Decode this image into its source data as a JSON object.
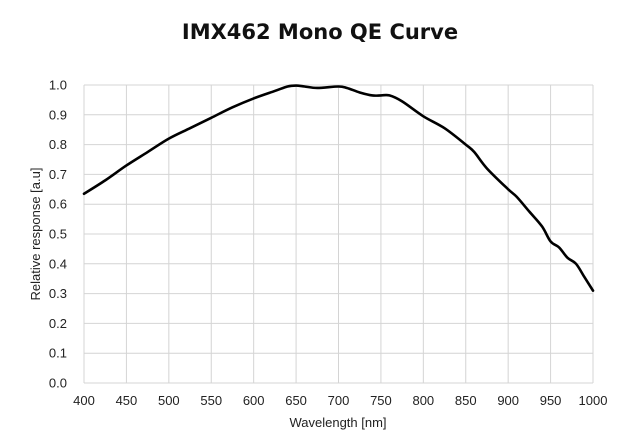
{
  "chart_data": {
    "type": "line",
    "title": "IMX462 Mono QE Curve",
    "xlabel": "Wavelength [nm]",
    "ylabel": "Relative response [a.u]",
    "xlim": [
      400,
      1000
    ],
    "ylim": [
      0,
      1.0
    ],
    "xticks": [
      "400",
      "450",
      "500",
      "550",
      "600",
      "650",
      "700",
      "750",
      "800",
      "850",
      "900",
      "950",
      "1000"
    ],
    "yticks": [
      "0.0",
      "0.1",
      "0.2",
      "0.3",
      "0.4",
      "0.5",
      "0.6",
      "0.7",
      "0.8",
      "0.9",
      "1.0"
    ],
    "grid": true,
    "series": [
      {
        "color": "#000000",
        "x": [
          400,
          425,
          450,
          475,
          500,
          525,
          550,
          575,
          600,
          625,
          640,
          650,
          660,
          675,
          700,
          710,
          725,
          740,
          750,
          760,
          775,
          800,
          825,
          850,
          860,
          875,
          900,
          910,
          925,
          940,
          950,
          960,
          970,
          980,
          990,
          1000
        ],
        "y": [
          0.635,
          0.68,
          0.73,
          0.775,
          0.82,
          0.855,
          0.89,
          0.925,
          0.955,
          0.98,
          0.995,
          0.998,
          0.995,
          0.99,
          0.995,
          0.99,
          0.975,
          0.965,
          0.965,
          0.965,
          0.945,
          0.895,
          0.855,
          0.8,
          0.775,
          0.72,
          0.65,
          0.625,
          0.575,
          0.525,
          0.475,
          0.455,
          0.42,
          0.4,
          0.355,
          0.31
        ]
      }
    ]
  }
}
